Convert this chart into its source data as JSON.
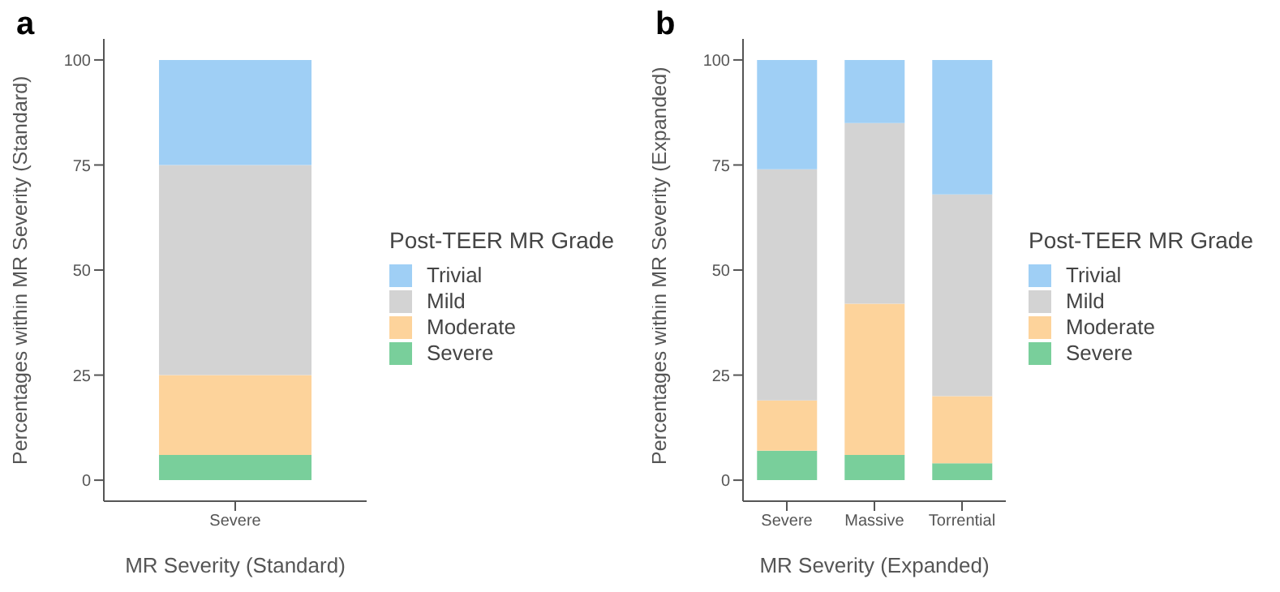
{
  "chart_data": [
    {
      "type": "bar",
      "title": "a",
      "xlabel": "MR Severity (Standard)",
      "ylabel": "Percentages within MR Severity (Standard)",
      "legend_title": "Post-TEER MR Grade",
      "categories": [
        "Severe"
      ],
      "stacked": true,
      "ylim": [
        -5,
        105
      ],
      "yticks": [
        0,
        25,
        50,
        75,
        100
      ],
      "legend": "right",
      "series": [
        {
          "name": "Severe",
          "color": "#79cf9b",
          "values": [
            6
          ]
        },
        {
          "name": "Moderate",
          "color": "#fdd39b",
          "values": [
            19
          ]
        },
        {
          "name": "Mild",
          "color": "#d3d3d3",
          "values": [
            50
          ]
        },
        {
          "name": "Trivial",
          "color": "#9fcff5",
          "values": [
            25
          ]
        }
      ]
    },
    {
      "type": "bar",
      "title": "b",
      "xlabel": "MR Severity (Expanded)",
      "ylabel": "Percentages within MR Severity (Expanded)",
      "legend_title": "Post-TEER MR Grade",
      "categories": [
        "Severe",
        "Massive",
        "Torrential"
      ],
      "stacked": true,
      "ylim": [
        -5,
        105
      ],
      "yticks": [
        0,
        25,
        50,
        75,
        100
      ],
      "legend": "right",
      "series": [
        {
          "name": "Severe",
          "color": "#79cf9b",
          "values": [
            7,
            6,
            4
          ]
        },
        {
          "name": "Moderate",
          "color": "#fdd39b",
          "values": [
            12,
            36,
            16
          ]
        },
        {
          "name": "Mild",
          "color": "#d3d3d3",
          "values": [
            55,
            43,
            48
          ]
        },
        {
          "name": "Trivial",
          "color": "#9fcff5",
          "values": [
            26,
            15,
            32
          ]
        }
      ]
    }
  ]
}
